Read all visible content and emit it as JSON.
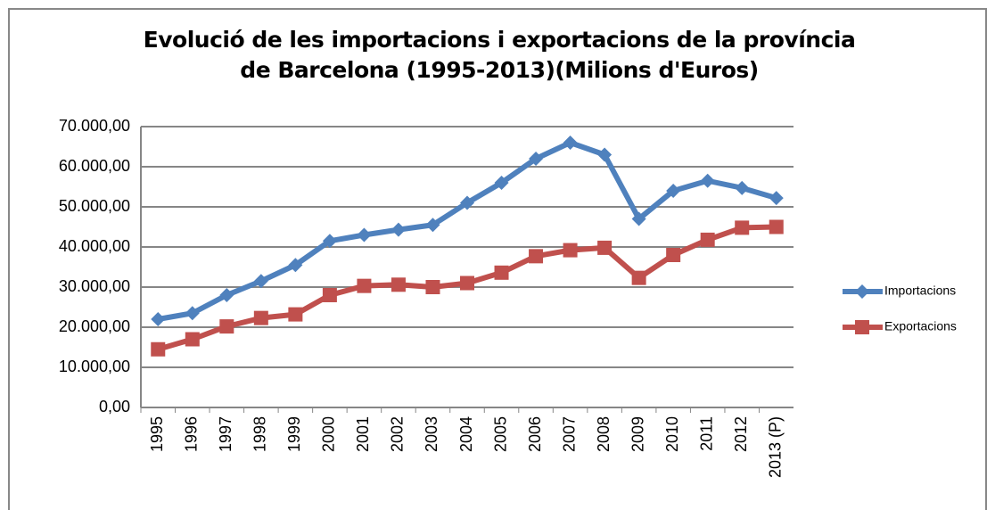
{
  "chart_data": {
    "type": "line",
    "title": "Evolució de les importacions i exportacions de la província de Barcelona (1995-2013)(Milions d'Euros)",
    "categories": [
      "1995",
      "1996",
      "1997",
      "1998",
      "1999",
      "2000",
      "2001",
      "2002",
      "2003",
      "2004",
      "2005",
      "2006",
      "2007",
      "2008",
      "2009",
      "2010",
      "2011",
      "2012",
      "2013 (P)"
    ],
    "series": [
      {
        "name": "Importacions",
        "color": "#4f81bd",
        "marker": "diamond",
        "values": [
          22000,
          23500,
          28000,
          31500,
          35500,
          41500,
          43000,
          44300,
          45500,
          51000,
          56000,
          62000,
          66000,
          63000,
          47000,
          54000,
          56500,
          54700,
          52200
        ]
      },
      {
        "name": "Exportacions",
        "color": "#c0504d",
        "marker": "square",
        "values": [
          14500,
          17000,
          20200,
          22300,
          23200,
          28000,
          30300,
          30600,
          30000,
          31000,
          33600,
          37700,
          39200,
          39800,
          32300,
          38000,
          41800,
          44800,
          45000
        ]
      }
    ],
    "ylim": [
      0,
      70000
    ],
    "yticks": [
      {
        "value": 0,
        "label": "0,00"
      },
      {
        "value": 10000,
        "label": "10.000,00"
      },
      {
        "value": 20000,
        "label": "20.000,00"
      },
      {
        "value": 30000,
        "label": "30.000,00"
      },
      {
        "value": 40000,
        "label": "40.000,00"
      },
      {
        "value": 50000,
        "label": "50.000,00"
      },
      {
        "value": 60000,
        "label": "60.000,00"
      },
      {
        "value": 70000,
        "label": "70.000,00"
      }
    ],
    "grid": true,
    "legend": "right"
  }
}
